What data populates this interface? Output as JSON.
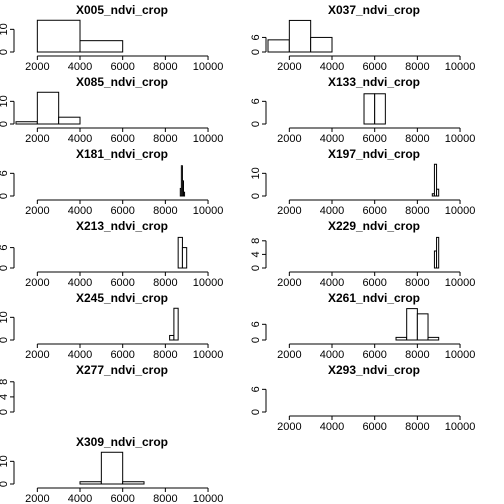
{
  "chart_data": [
    {
      "type": "histogram",
      "title": "X005_ndvi_crop",
      "bins": [
        2000,
        4000,
        6000
      ],
      "counts": [
        14,
        5
      ],
      "xlim": [
        1000,
        10500
      ],
      "ylim": [
        0,
        15
      ],
      "yticks": [
        0,
        10
      ],
      "xticks": [
        2000,
        4000,
        6000,
        8000,
        10000
      ]
    },
    {
      "type": "histogram",
      "title": "X037_ndvi_crop",
      "bins": [
        1000,
        2000,
        3000,
        4000
      ],
      "counts": [
        5,
        13,
        6
      ],
      "xlim": [
        1000,
        10500
      ],
      "ylim": [
        0,
        14
      ],
      "yticks": [
        0,
        6
      ],
      "xticks": [
        2000,
        4000,
        6000,
        8000,
        10000
      ]
    },
    {
      "type": "histogram",
      "title": "X085_ndvi_crop",
      "bins": [
        1000,
        2000,
        3000,
        4000
      ],
      "counts": [
        1,
        14,
        3
      ],
      "xlim": [
        1000,
        10500
      ],
      "ylim": [
        0,
        15
      ],
      "yticks": [
        0,
        10
      ],
      "xticks": [
        2000,
        4000,
        6000,
        8000,
        10000
      ]
    },
    {
      "type": "histogram",
      "title": "X133_ndvi_crop",
      "bins": [
        5500,
        6000,
        6500
      ],
      "counts": [
        8,
        8
      ],
      "xlim": [
        1000,
        10500
      ],
      "ylim": [
        0,
        9
      ],
      "yticks": [
        0,
        6
      ],
      "xticks": [
        2000,
        4000,
        6000,
        8000,
        10000
      ]
    },
    {
      "type": "histogram",
      "title": "X181_ndvi_crop",
      "bins": [
        8700,
        8750,
        8800,
        8850,
        8900
      ],
      "counts": [
        2,
        8,
        4,
        1
      ],
      "xlim": [
        1000,
        10500
      ],
      "ylim": [
        0,
        9
      ],
      "yticks": [
        0,
        6
      ],
      "xticks": [
        2000,
        4000,
        6000,
        8000,
        10000
      ]
    },
    {
      "type": "histogram",
      "title": "X197_ndvi_crop",
      "bins": [
        8700,
        8800,
        8900,
        9000
      ],
      "counts": [
        1,
        14,
        3
      ],
      "xlim": [
        1000,
        10500
      ],
      "ylim": [
        0,
        15
      ],
      "yticks": [
        0,
        10
      ],
      "xticks": [
        2000,
        4000,
        6000,
        8000,
        10000
      ]
    },
    {
      "type": "histogram",
      "title": "X213_ndvi_crop",
      "bins": [
        8600,
        8800,
        9000
      ],
      "counts": [
        9,
        6
      ],
      "xlim": [
        1000,
        10500
      ],
      "ylim": [
        0,
        10
      ],
      "yticks": [
        0,
        6
      ],
      "xticks": [
        2000,
        4000,
        6000,
        8000,
        10000
      ]
    },
    {
      "type": "histogram",
      "title": "X229_ndvi_crop",
      "bins": [
        8800,
        8900,
        9000
      ],
      "counts": [
        5,
        9
      ],
      "xlim": [
        1000,
        10500
      ],
      "ylim": [
        0,
        10
      ],
      "yticks": [
        0,
        4,
        8
      ],
      "xticks": [
        2000,
        4000,
        6000,
        8000,
        10000
      ]
    },
    {
      "type": "histogram",
      "title": "X245_ndvi_crop",
      "bins": [
        8200,
        8400,
        8600
      ],
      "counts": [
        2,
        14
      ],
      "xlim": [
        1000,
        10500
      ],
      "ylim": [
        0,
        15
      ],
      "yticks": [
        0,
        10
      ],
      "xticks": [
        2000,
        4000,
        6000,
        8000,
        10000
      ]
    },
    {
      "type": "histogram",
      "title": "X261_ndvi_crop",
      "bins": [
        7000,
        7500,
        8000,
        8500,
        9000
      ],
      "counts": [
        1,
        12,
        10,
        1
      ],
      "xlim": [
        1000,
        10500
      ],
      "ylim": [
        0,
        13
      ],
      "yticks": [
        0,
        6
      ],
      "xticks": [
        2000,
        4000,
        6000,
        8000,
        10000
      ]
    },
    {
      "type": "histogram",
      "title": "X277_ndvi_crop",
      "xlim": [
        1000,
        10500
      ],
      "ylim": [
        0,
        9
      ],
      "yticks": [
        0,
        4,
        8
      ]
    },
    {
      "type": "histogram",
      "title": "X293_ndvi_crop",
      "xlim": [
        1000,
        10500
      ],
      "ylim": [
        0,
        9
      ],
      "yticks": [
        0,
        6
      ],
      "xticks": [
        2000,
        4000,
        6000,
        8000,
        10000
      ]
    },
    {
      "type": "histogram",
      "title": "X309_ndvi_crop",
      "bins": [
        4000,
        5000,
        6000,
        7000
      ],
      "counts": [
        1,
        14,
        1
      ],
      "xlim": [
        1000,
        10500
      ],
      "ylim": [
        0,
        15
      ],
      "yticks": [
        0,
        10
      ],
      "xticks": [
        2000,
        4000,
        6000,
        8000,
        10000
      ]
    }
  ]
}
